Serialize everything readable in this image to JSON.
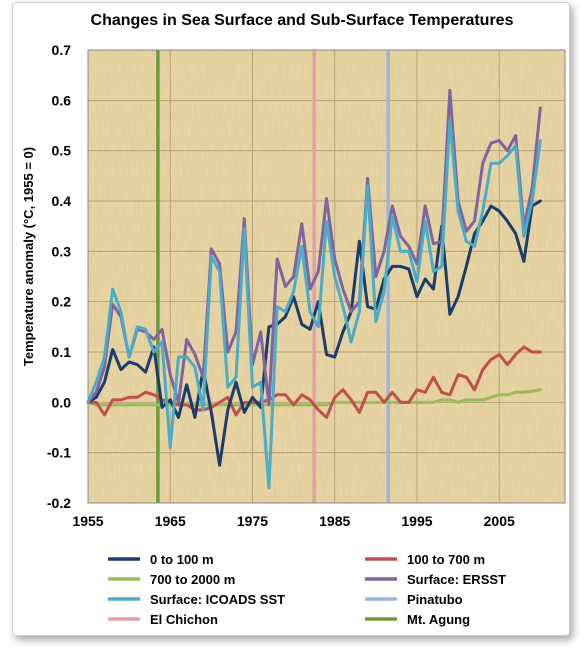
{
  "chart_data": {
    "type": "line",
    "title": "Changes in Sea Surface and Sub-Surface Temperatures",
    "xlabel": "",
    "ylabel": "Temperature anomaly (°C, 1955 = 0)",
    "xlim": [
      1955,
      2013
    ],
    "ylim": [
      -0.2,
      0.7
    ],
    "xticks": [
      1955,
      1965,
      1975,
      1985,
      1995,
      2005
    ],
    "yticks": [
      -0.2,
      -0.1,
      0.0,
      0.1,
      0.2,
      0.3,
      0.4,
      0.5,
      0.6,
      0.7
    ],
    "ytick_labels": [
      "-0.2",
      "-0.1",
      "0.0",
      "0.1",
      "0.2",
      "0.3",
      "0.4",
      "0.5",
      "0.6",
      "0.7"
    ],
    "grid": true,
    "legend_position": "bottom",
    "years": [
      1955,
      1956,
      1957,
      1958,
      1959,
      1960,
      1961,
      1962,
      1963,
      1964,
      1965,
      1966,
      1967,
      1968,
      1969,
      1970,
      1971,
      1972,
      1973,
      1974,
      1975,
      1976,
      1977,
      1978,
      1979,
      1980,
      1981,
      1982,
      1983,
      1984,
      1985,
      1986,
      1987,
      1988,
      1989,
      1990,
      1991,
      1992,
      1993,
      1994,
      1995,
      1996,
      1997,
      1998,
      1999,
      2000,
      2001,
      2002,
      2003,
      2004,
      2005,
      2006,
      2007,
      2008,
      2009,
      2010
    ],
    "series": [
      {
        "name": "0 to 100 m",
        "color": "#1b3d6b",
        "width": 3,
        "values": [
          0.0,
          0.01,
          0.04,
          0.105,
          0.065,
          0.08,
          0.075,
          0.06,
          0.11,
          -0.01,
          0.005,
          -0.03,
          0.035,
          -0.03,
          0.065,
          -0.02,
          -0.125,
          -0.015,
          0.04,
          -0.02,
          0.01,
          -0.01,
          0.15,
          0.155,
          0.17,
          0.21,
          0.155,
          0.145,
          0.2,
          0.095,
          0.09,
          0.14,
          0.18,
          0.32,
          0.19,
          0.185,
          0.245,
          0.27,
          0.27,
          0.265,
          0.21,
          0.245,
          0.225,
          0.35,
          0.175,
          0.21,
          0.27,
          0.335,
          0.36,
          0.39,
          0.38,
          0.36,
          0.335,
          0.28,
          0.39,
          0.4
        ]
      },
      {
        "name": "100 to 700 m",
        "color": "#c0504d",
        "width": 3,
        "values": [
          0.0,
          0.0,
          -0.025,
          0.005,
          0.005,
          0.01,
          0.01,
          0.02,
          0.015,
          0.005,
          0.0,
          -0.005,
          -0.005,
          -0.015,
          -0.015,
          -0.01,
          0.0,
          0.01,
          -0.025,
          0.0,
          0.0,
          0.0,
          0.005,
          0.015,
          0.015,
          -0.005,
          0.015,
          0.005,
          -0.015,
          -0.03,
          0.01,
          0.025,
          0.005,
          -0.02,
          0.02,
          0.02,
          0.0,
          0.02,
          0.0,
          0.0,
          0.025,
          0.02,
          0.05,
          0.02,
          0.015,
          0.055,
          0.05,
          0.025,
          0.065,
          0.085,
          0.095,
          0.075,
          0.095,
          0.11,
          0.1,
          0.1
        ]
      },
      {
        "name": "700 to 2000 m",
        "color": "#9bbb59",
        "width": 3,
        "values": [
          0.0,
          -0.005,
          -0.005,
          -0.005,
          -0.005,
          -0.005,
          -0.005,
          -0.005,
          -0.005,
          -0.005,
          -0.005,
          -0.005,
          -0.005,
          -0.005,
          -0.005,
          -0.005,
          -0.005,
          -0.005,
          -0.005,
          -0.005,
          -0.005,
          -0.005,
          -0.005,
          -0.005,
          -0.005,
          -0.005,
          -0.005,
          -0.005,
          -0.005,
          -0.005,
          0.0,
          0.0,
          0.0,
          0.0,
          0.0,
          0.0,
          0.0,
          0.0,
          0.0,
          0.0,
          0.0,
          0.0,
          0.0,
          0.005,
          0.005,
          0.0,
          0.005,
          0.005,
          0.005,
          0.01,
          0.015,
          0.015,
          0.02,
          0.02,
          0.022,
          0.025
        ]
      },
      {
        "name": "Surface: ERSST",
        "color": "#8064a2",
        "width": 3,
        "values": [
          0.0,
          0.02,
          0.07,
          0.195,
          0.17,
          0.09,
          0.145,
          0.14,
          0.125,
          0.145,
          0.055,
          0.0,
          0.125,
          0.095,
          0.05,
          0.305,
          0.275,
          0.1,
          0.14,
          0.365,
          0.075,
          0.14,
          -0.005,
          0.285,
          0.23,
          0.25,
          0.355,
          0.225,
          0.26,
          0.405,
          0.285,
          0.225,
          0.18,
          0.2,
          0.445,
          0.25,
          0.3,
          0.39,
          0.33,
          0.31,
          0.275,
          0.39,
          0.315,
          0.32,
          0.62,
          0.4,
          0.34,
          0.36,
          0.475,
          0.515,
          0.52,
          0.5,
          0.53,
          0.35,
          0.425,
          0.585
        ]
      },
      {
        "name": "Surface: ICOADS SST",
        "color": "#4bacc6",
        "width": 3,
        "values": [
          0.0,
          0.04,
          0.09,
          0.225,
          0.18,
          0.09,
          0.15,
          0.145,
          0.1,
          0.12,
          -0.09,
          0.09,
          0.09,
          0.07,
          -0.015,
          0.29,
          0.26,
          0.03,
          0.05,
          0.345,
          0.03,
          0.04,
          -0.17,
          0.19,
          0.18,
          0.22,
          0.31,
          0.18,
          0.15,
          0.36,
          0.25,
          0.19,
          0.12,
          0.18,
          0.43,
          0.16,
          0.22,
          0.37,
          0.3,
          0.3,
          0.24,
          0.36,
          0.26,
          0.27,
          0.56,
          0.38,
          0.32,
          0.31,
          0.38,
          0.475,
          0.475,
          0.49,
          0.51,
          0.33,
          0.4,
          0.52
        ]
      }
    ],
    "vertical_markers": [
      {
        "name": "Pinatubo",
        "x": 1991.5,
        "color": "#9ab6d8"
      },
      {
        "name": "El Chichon",
        "x": 1982.5,
        "color": "#e0a0a8"
      },
      {
        "name": "Mt. Agung",
        "x": 1963.5,
        "color": "#6f9a3c"
      }
    ],
    "legend": [
      {
        "label": "0 to 100 m",
        "color": "#1b3d6b"
      },
      {
        "label": "100 to 700 m",
        "color": "#c0504d"
      },
      {
        "label": "700 to 2000 m",
        "color": "#9bbb59"
      },
      {
        "label": "Surface: ERSST",
        "color": "#8064a2"
      },
      {
        "label": "Surface: ICOADS SST",
        "color": "#4bacc6"
      },
      {
        "label": "Pinatubo",
        "color": "#9ab6d8"
      },
      {
        "label": "El Chichon",
        "color": "#e0a0a8"
      },
      {
        "label": "Mt. Agung",
        "color": "#6f9a3c"
      }
    ],
    "plot_background": "#ecd9a8"
  }
}
